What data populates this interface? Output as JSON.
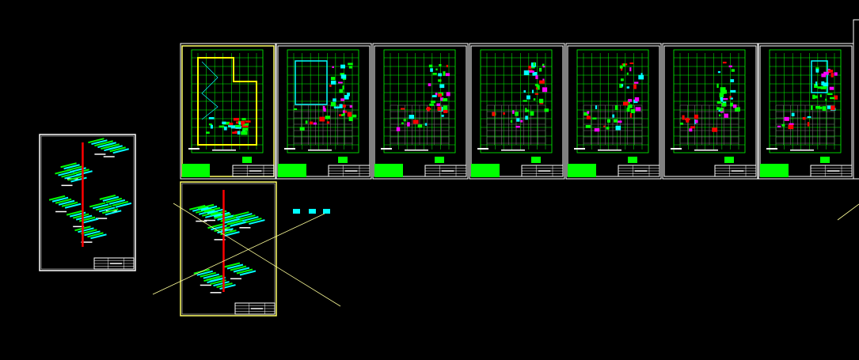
{
  "viewport": {
    "background": "#000000",
    "colors": {
      "frame": "#ffffff",
      "frame_highlight": "#ffff66",
      "grid": "#00ff00",
      "pipe_cyan": "#00ffff",
      "pipe_red": "#ff0000",
      "magenta": "#ff00ff",
      "yellow": "#ffff00",
      "gray": "#808080",
      "construction_line": "#ffff99"
    }
  },
  "sheets": {
    "floor_plans": [
      {
        "kind": "roof-plan",
        "highlighted": true
      },
      {
        "kind": "floor-plan",
        "highlighted": false
      },
      {
        "kind": "floor-plan",
        "highlighted": false
      },
      {
        "kind": "floor-plan",
        "highlighted": false
      },
      {
        "kind": "floor-plan",
        "highlighted": false
      },
      {
        "kind": "floor-plan",
        "highlighted": false
      },
      {
        "kind": "floor-plan",
        "highlighted": false
      }
    ],
    "isometric_sheets": [
      {
        "kind": "pipe-isometric-left"
      },
      {
        "kind": "pipe-isometric-bottom",
        "highlighted": true
      }
    ]
  }
}
